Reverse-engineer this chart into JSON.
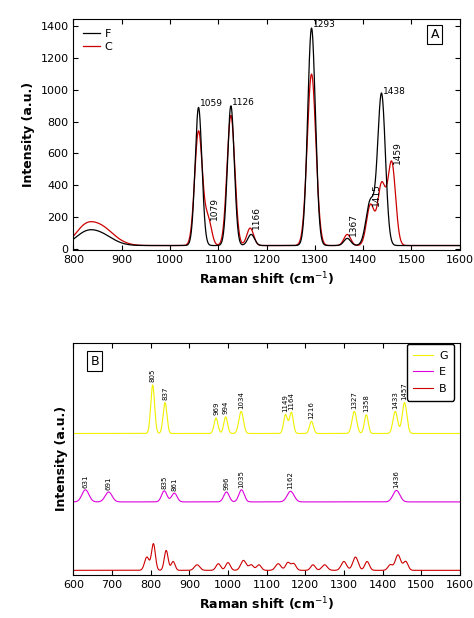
{
  "panel_A": {
    "xlim": [
      800,
      1600
    ],
    "ylim": [
      -10,
      1450
    ],
    "yticks": [
      0,
      200,
      400,
      600,
      800,
      1000,
      1200,
      1400
    ],
    "xticks": [
      800,
      900,
      1000,
      1100,
      1200,
      1300,
      1400,
      1500,
      1600
    ],
    "xlabel": "Raman shift (cm-1)",
    "ylabel": "Intensity (a.u.)",
    "label": "A",
    "legend_F": "F",
    "legend_C": "C",
    "color_F": "#000000",
    "color_C": "#cc0000"
  },
  "panel_B": {
    "xlim": [
      600,
      1600
    ],
    "xticks": [
      600,
      700,
      800,
      900,
      1000,
      1100,
      1200,
      1300,
      1400,
      1500,
      1600
    ],
    "xlabel": "Raman shift (cm-1)",
    "ylabel": "Intensity (a.u.)",
    "label": "B",
    "color_G": "#f0f000",
    "color_E": "#dd00dd",
    "color_B": "#cc0000",
    "legend_G": "G",
    "legend_E": "E",
    "legend_B": "B",
    "peaks_G": [
      805,
      837,
      969,
      994,
      1034,
      1149,
      1164,
      1216,
      1327,
      1358,
      1433,
      1457
    ],
    "labels_G": [
      "805",
      "837",
      "969",
      "994",
      "1034",
      "1149",
      "1164",
      "1216",
      "1327",
      "1358",
      "1433",
      "1457"
    ],
    "peaks_E": [
      631,
      691,
      835,
      861,
      996,
      1035,
      1162,
      1436
    ],
    "labels_E": [
      "631",
      "691",
      "835",
      "861",
      "996",
      "1035",
      "1162",
      "1436"
    ]
  }
}
